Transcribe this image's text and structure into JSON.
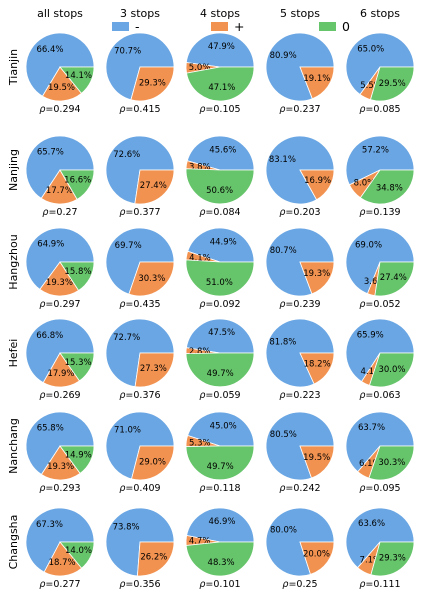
{
  "chart_data": {
    "type": "pie",
    "columns": [
      "all stops",
      "3 stops",
      "4 stops",
      "5 stops",
      "6 stops"
    ],
    "rows": [
      "Tianjin",
      "Nanjing",
      "Hangzhou",
      "Hefei",
      "Nanchang",
      "Changsha"
    ],
    "legend": [
      {
        "label": "-",
        "color": "#6aa6e3"
      },
      {
        "label": "+",
        "color": "#f29250"
      },
      {
        "label": "0",
        "color": "#66c46a"
      }
    ],
    "rho_prefix": "ρ=",
    "cells": [
      [
        {
          "minus": 66.4,
          "plus": 19.5,
          "zero": 14.1,
          "labels": [
            "66.4%",
            "19.5%",
            "14.1%"
          ],
          "rho": "0.294"
        },
        {
          "minus": 70.7,
          "plus": 29.3,
          "zero": 0,
          "labels": [
            "70.7%",
            "29.3%"
          ],
          "rho": "0.415"
        },
        {
          "minus": 47.9,
          "plus": 5.0,
          "zero": 47.1,
          "labels": [
            "47.9%",
            "5.0%",
            "47.1%"
          ],
          "rho": "0.105"
        },
        {
          "minus": 80.9,
          "plus": 19.1,
          "zero": 0,
          "labels": [
            "80.9%",
            "19.1%"
          ],
          "rho": "0.237"
        },
        {
          "minus": 65.0,
          "plus": 5.5,
          "zero": 29.5,
          "labels": [
            "65.0%",
            "5.5%",
            "29.5%"
          ],
          "rho": "0.085"
        }
      ],
      [
        {
          "minus": 65.7,
          "plus": 17.7,
          "zero": 16.6,
          "labels": [
            "65.7%",
            "17.7%",
            "16.6%"
          ],
          "rho": "0.27"
        },
        {
          "minus": 72.6,
          "plus": 27.4,
          "zero": 0,
          "labels": [
            "72.6%",
            "27.4%"
          ],
          "rho": "0.377"
        },
        {
          "minus": 45.6,
          "plus": 3.8,
          "zero": 50.6,
          "labels": [
            "45.6%",
            "3.8%",
            "50.6%"
          ],
          "rho": "0.084"
        },
        {
          "minus": 83.1,
          "plus": 16.9,
          "zero": 0,
          "labels": [
            "83.1%",
            "16.9%"
          ],
          "rho": "0.203"
        },
        {
          "minus": 57.2,
          "plus": 8.0,
          "zero": 34.8,
          "labels": [
            "57.2%",
            "8.0%",
            "34.8%"
          ],
          "rho": "0.139"
        }
      ],
      [
        {
          "minus": 64.9,
          "plus": 19.3,
          "zero": 15.8,
          "labels": [
            "64.9%",
            "19.3%",
            "15.8%"
          ],
          "rho": "0.297"
        },
        {
          "minus": 69.7,
          "plus": 30.3,
          "zero": 0,
          "labels": [
            "69.7%",
            "30.3%"
          ],
          "rho": "0.435"
        },
        {
          "minus": 44.9,
          "plus": 4.1,
          "zero": 51.0,
          "labels": [
            "44.9%",
            "4.1%",
            "51.0%"
          ],
          "rho": "0.092"
        },
        {
          "minus": 80.7,
          "plus": 19.3,
          "zero": 0,
          "labels": [
            "80.7%",
            "19.3%"
          ],
          "rho": "0.239"
        },
        {
          "minus": 69.0,
          "plus": 3.6,
          "zero": 27.4,
          "labels": [
            "69.0%",
            "3.6%",
            "27.4%"
          ],
          "rho": "0.052"
        }
      ],
      [
        {
          "minus": 66.8,
          "plus": 17.9,
          "zero": 15.3,
          "labels": [
            "66.8%",
            "17.9%",
            "15.3%"
          ],
          "rho": "0.269"
        },
        {
          "minus": 72.7,
          "plus": 27.3,
          "zero": 0,
          "labels": [
            "72.7%",
            "27.3%"
          ],
          "rho": "0.376"
        },
        {
          "minus": 47.5,
          "plus": 2.8,
          "zero": 49.7,
          "labels": [
            "47.5%",
            "2.8%",
            "49.7%"
          ],
          "rho": "0.059"
        },
        {
          "minus": 81.8,
          "plus": 18.2,
          "zero": 0,
          "labels": [
            "81.8%",
            "18.2%"
          ],
          "rho": "0.223"
        },
        {
          "minus": 65.9,
          "plus": 4.1,
          "zero": 30.0,
          "labels": [
            "65.9%",
            "4.1%",
            "30.0%"
          ],
          "rho": "0.063"
        }
      ],
      [
        {
          "minus": 65.8,
          "plus": 19.3,
          "zero": 14.9,
          "labels": [
            "65.8%",
            "19.3%",
            "14.9%"
          ],
          "rho": "0.293"
        },
        {
          "minus": 71.0,
          "plus": 29.0,
          "zero": 0,
          "labels": [
            "71.0%",
            "29.0%"
          ],
          "rho": "0.409"
        },
        {
          "minus": 45.0,
          "plus": 5.3,
          "zero": 49.7,
          "labels": [
            "45.0%",
            "5.3%",
            "49.7%"
          ],
          "rho": "0.118"
        },
        {
          "minus": 80.5,
          "plus": 19.5,
          "zero": 0,
          "labels": [
            "80.5%",
            "19.5%"
          ],
          "rho": "0.242"
        },
        {
          "minus": 63.7,
          "plus": 6.1,
          "zero": 30.3,
          "labels": [
            "63.7%",
            "6.1%",
            "30.3%"
          ],
          "rho": "0.095"
        }
      ],
      [
        {
          "minus": 67.3,
          "plus": 18.7,
          "zero": 14.0,
          "labels": [
            "67.3%",
            "18.7%",
            "14.0%"
          ],
          "rho": "0.277"
        },
        {
          "minus": 73.8,
          "plus": 26.2,
          "zero": 0,
          "labels": [
            "73.8%",
            "26.2%"
          ],
          "rho": "0.356"
        },
        {
          "minus": 46.9,
          "plus": 4.7,
          "zero": 48.3,
          "labels": [
            "46.9%",
            "4.7%",
            "48.3%"
          ],
          "rho": "0.101"
        },
        {
          "minus": 80.0,
          "plus": 20.0,
          "zero": 0,
          "labels": [
            "80.0%",
            "20.0%"
          ],
          "rho": "0.25"
        },
        {
          "minus": 63.6,
          "plus": 7.1,
          "zero": 29.3,
          "labels": [
            "63.6%",
            "7.1%",
            "29.3%"
          ],
          "rho": "0.111"
        }
      ]
    ]
  }
}
